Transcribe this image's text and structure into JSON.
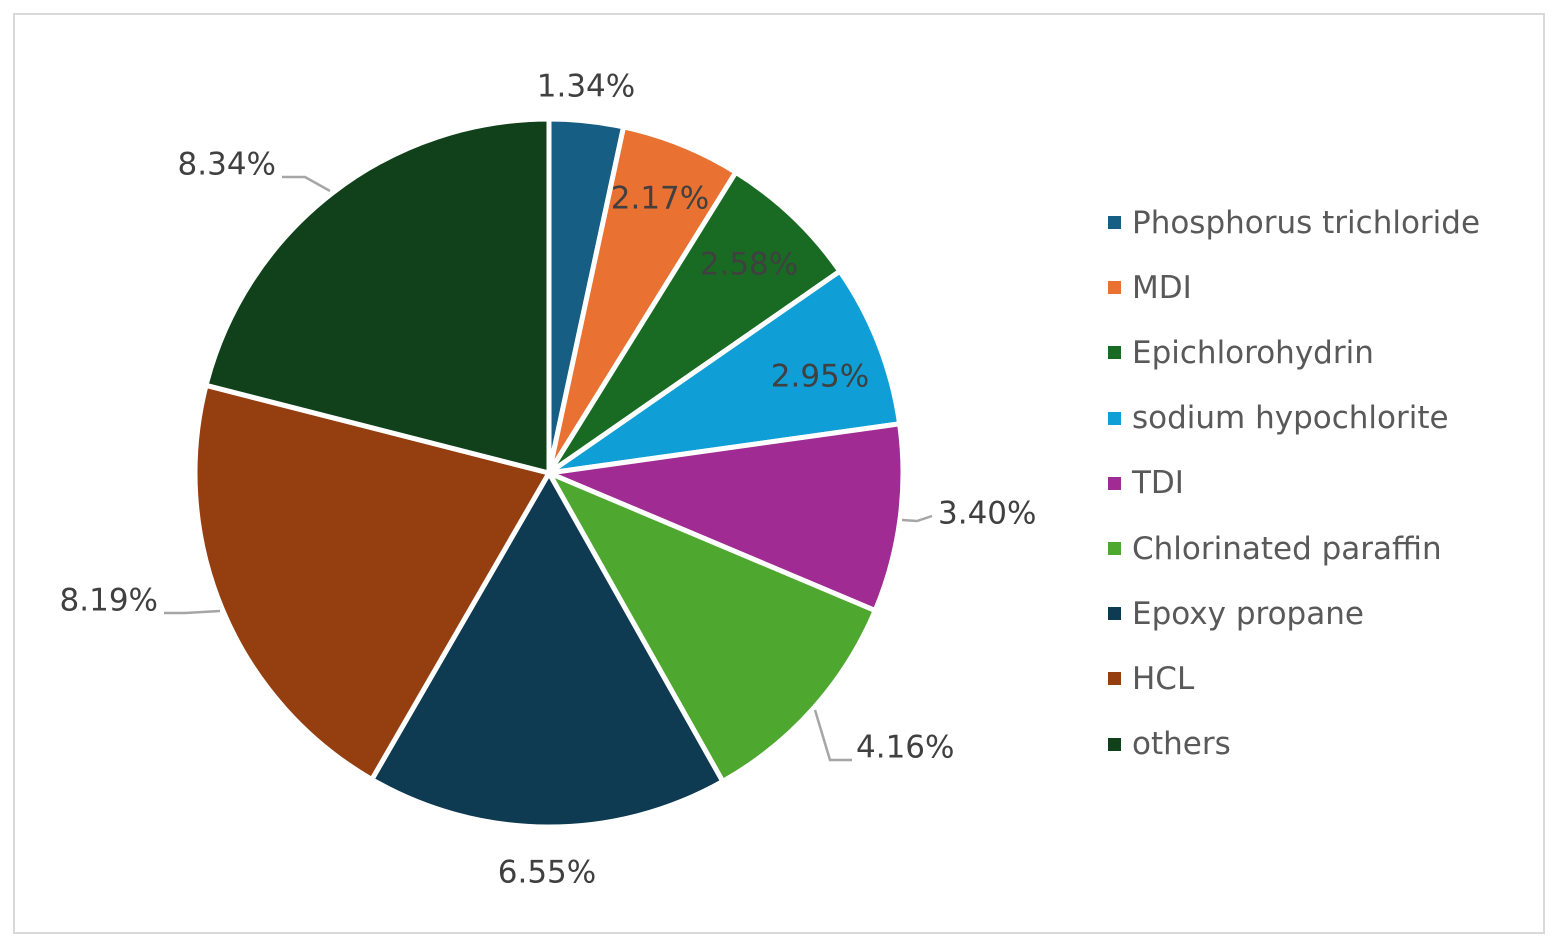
{
  "chart_data": {
    "type": "pie",
    "title": "",
    "legend_position": "right",
    "slices": [
      {
        "name": "Phosphorus trichloride",
        "value": 1.34,
        "label": "1.34%",
        "color": "#165e83"
      },
      {
        "name": "MDI",
        "value": 2.17,
        "label": "2.17%",
        "color": "#e97132"
      },
      {
        "name": "Epichlorohydrin",
        "value": 2.58,
        "label": "2.58%",
        "color": "#196b24"
      },
      {
        "name": "sodium hypochlorite",
        "value": 2.95,
        "label": "2.95%",
        "color": "#0f9ed5"
      },
      {
        "name": "TDI",
        "value": 3.4,
        "label": "3.40%",
        "color": "#a02b93"
      },
      {
        "name": "Chlorinated paraffin",
        "value": 4.16,
        "label": "4.16%",
        "color": "#4ea72e"
      },
      {
        "name": "Epoxy propane",
        "value": 6.55,
        "label": "6.55%",
        "color": "#0e3a52"
      },
      {
        "name": "HCL",
        "value": 8.19,
        "label": "8.19%",
        "color": "#953f10"
      },
      {
        "name": "others",
        "value": 8.34,
        "label": "8.34%",
        "color": "#10411a"
      }
    ]
  }
}
